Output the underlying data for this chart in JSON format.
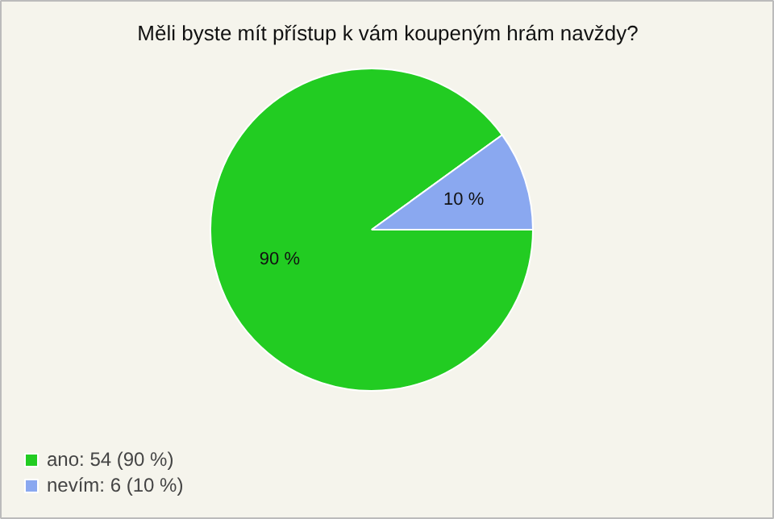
{
  "chart_data": {
    "type": "pie",
    "title": "Měli byste mít přístup k vám koupeným hrám navždy?",
    "categories": [
      "ano: 54 (90 %)",
      "nevím: 6 (10 %)"
    ],
    "values": [
      90,
      10
    ],
    "value_labels": [
      "90 %",
      "10 %"
    ],
    "colors": [
      "#22cc22",
      "#8aa8f0"
    ],
    "legend": "bottom left"
  }
}
